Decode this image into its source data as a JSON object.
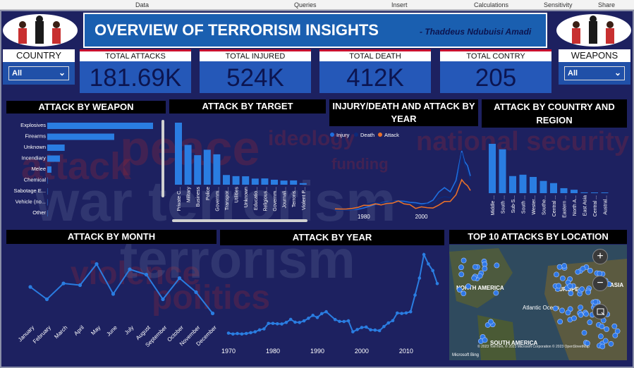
{
  "menu": {
    "data": "Data",
    "queries": "Queries",
    "insert": "Insert",
    "calculations": "Calculations",
    "sensitivity": "Sensitivity",
    "share": "Share"
  },
  "header": {
    "title": "OVERVIEW OF TERRORISM INSIGHTS",
    "author": "- Thaddeus Ndubuisi Amadi"
  },
  "slicers": {
    "country": {
      "label": "COUNTRY",
      "value": "All"
    },
    "weapons": {
      "label": "WEAPONS",
      "value": "All"
    }
  },
  "kpis": [
    {
      "label": "TOTAL ATTACKS",
      "value": "181.69K"
    },
    {
      "label": "TOTAL INJURED",
      "value": "524K"
    },
    {
      "label": "TOTAL DEATH",
      "value": "412K"
    },
    {
      "label": "TOTAL CONTRY",
      "value": "205"
    }
  ],
  "colors": {
    "bar": "#2a7de1",
    "injury": "#1f6fe0",
    "death": "#0d2a7a",
    "attack": "#e8702a",
    "title_bg": "#000000",
    "kpi_bg": "#2558b8",
    "accent": "#c8102e"
  },
  "chart_data": [
    {
      "type": "bar",
      "id": "weapon",
      "title": "ATTACK BY WEAPON",
      "orientation": "horizontal",
      "categories": [
        "Explosives",
        "Firearms",
        "Unknown",
        "Incendiary",
        "Melee",
        "Chemical",
        "Sabotage E...",
        "Vehicle (no...",
        "Other"
      ],
      "values": [
        92400,
        58500,
        15200,
        11100,
        3650,
        320,
        140,
        136,
        114
      ]
    },
    {
      "type": "bar",
      "id": "target",
      "title": "ATTACK BY TARGET",
      "categories": [
        "Private C...",
        "Military",
        "Business",
        "Police",
        "Governm...",
        "Transpor...",
        "Utilities",
        "Unknown",
        "Educatio...",
        "Religious...",
        "Governm...",
        "Journali...",
        "Terroris...",
        "Violent P..."
      ],
      "values": [
        43500,
        27900,
        20700,
        24500,
        21300,
        6800,
        6000,
        5900,
        4300,
        4400,
        3500,
        2900,
        3000,
        1100
      ]
    },
    {
      "type": "line",
      "id": "injury_death_attack",
      "title": "INJURY/DEATH AND ATTACK BY YEAR",
      "legend": [
        "Injury",
        "Death",
        "Attack"
      ],
      "x": [
        1970,
        1972,
        1974,
        1976,
        1978,
        1980,
        1982,
        1984,
        1986,
        1988,
        1990,
        1992,
        1994,
        1996,
        1998,
        2000,
        2002,
        2004,
        2006,
        2008,
        2010,
        2012,
        2014,
        2015,
        2016,
        2017
      ],
      "series": [
        {
          "name": "Injury",
          "values": [
            20,
            60,
            120,
            250,
            500,
            1200,
            2100,
            3200,
            4000,
            4600,
            4800,
            5100,
            4900,
            4300,
            4100,
            3500,
            3800,
            5500,
            10000,
            12500,
            10200,
            16500,
            33000,
            27000,
            24800,
            19000
          ]
        },
        {
          "name": "Death",
          "values": [
            15,
            80,
            150,
            350,
            1100,
            2800,
            3700,
            4200,
            3800,
            4300,
            4900,
            4600,
            4300,
            3700,
            3100,
            2700,
            3400,
            3200,
            6500,
            7500,
            6900,
            12200,
            32000,
            25500,
            22000,
            17000
          ]
        },
        {
          "name": "Attack",
          "values": [
            650,
            570,
            600,
            920,
            1500,
            2660,
            2540,
            3490,
            2860,
            3720,
            3880,
            5070,
            3460,
            3060,
            930,
            1810,
            1330,
            1160,
            2760,
            4800,
            4820,
            8500,
            16900,
            14900,
            13600,
            10900
          ]
        }
      ]
    },
    {
      "type": "bar",
      "id": "region",
      "title": "ATTACK BY COUNTRY AND REGION",
      "categories": [
        "Middle ...",
        "South ...",
        "Sub-S...",
        "South ...",
        "Wester...",
        "Southe...",
        "Central ...",
        "Eastern ...",
        "North A...",
        "East Asia",
        "Central ...",
        "Austral..."
      ],
      "values": [
        50500,
        44900,
        17500,
        18900,
        16600,
        12500,
        10300,
        5100,
        3500,
        800,
        560,
        280
      ]
    },
    {
      "type": "line",
      "id": "month",
      "title": "ATTACK BY MONTH",
      "categories": [
        "January",
        "February",
        "March",
        "April",
        "May",
        "June",
        "July",
        "August",
        "September",
        "October",
        "November",
        "December"
      ],
      "values": [
        15000,
        14300,
        15200,
        15100,
        16300,
        14600,
        16000,
        15700,
        14300,
        15500,
        14700,
        13500
      ]
    },
    {
      "type": "line",
      "id": "year",
      "title": "ATTACK BY YEAR",
      "x": [
        1970,
        1971,
        1972,
        1973,
        1974,
        1975,
        1976,
        1977,
        1978,
        1979,
        1980,
        1981,
        1982,
        1983,
        1984,
        1985,
        1986,
        1987,
        1988,
        1989,
        1990,
        1991,
        1992,
        1994,
        1995,
        1996,
        1997,
        1998,
        1999,
        2000,
        2001,
        2002,
        2003,
        2004,
        2005,
        2006,
        2007,
        2008,
        2009,
        2010,
        2011,
        2012,
        2013,
        2014,
        2015,
        2016,
        2017
      ],
      "values": [
        651,
        471,
        568,
        473,
        581,
        740,
        923,
        1319,
        1526,
        2662,
        2662,
        2586,
        2544,
        2870,
        3495,
        2915,
        2860,
        3183,
        3721,
        4324,
        3887,
        4683,
        5071,
        3456,
        3081,
        3058,
        3197,
        934,
        1395,
        1814,
        1906,
        1333,
        1278,
        1166,
        2017,
        2758,
        3242,
        4805,
        4721,
        4826,
        5076,
        8522,
        12036,
        16903,
        14965,
        13587,
        10900
      ],
      "xticks": [
        "1970",
        "1980",
        "1990",
        "2000",
        "2010"
      ]
    }
  ],
  "map": {
    "title": "TOP 10 ATTACKS BY LOCATION",
    "labels": [
      "NORTH AMERICA",
      "Atlantic Ocean",
      "SOUTH AMERICA",
      "EUROPE",
      "ASIA"
    ],
    "attribution": "© 2023 TomTom, © 2023 Microsoft Corporation © 2023 OpenStreetMap",
    "brand": "Microsoft Bing",
    "zoom_in": "+",
    "zoom_out": "−"
  }
}
